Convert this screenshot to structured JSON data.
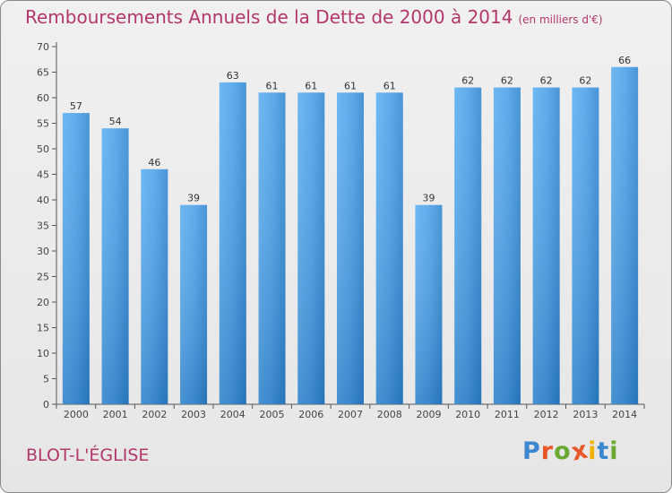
{
  "chart_data": {
    "type": "bar",
    "title": "Remboursements Annuels de la Dette de 2000 à 2014",
    "unit_note": "(en milliers d'€)",
    "categories": [
      "2000",
      "2001",
      "2002",
      "2003",
      "2004",
      "2005",
      "2006",
      "2007",
      "2008",
      "2009",
      "2010",
      "2011",
      "2012",
      "2013",
      "2014"
    ],
    "values": [
      57,
      54,
      46,
      39,
      63,
      61,
      61,
      61,
      61,
      39,
      62,
      62,
      62,
      62,
      66
    ],
    "xlabel": "",
    "ylabel": "",
    "ylim": [
      0,
      70
    ],
    "yticks": [
      0,
      5,
      10,
      15,
      20,
      25,
      30,
      35,
      40,
      45,
      50,
      55,
      60,
      65,
      70
    ],
    "grid": false,
    "bar_color": "#3a8fd6"
  },
  "commune": "BLOT-L'ÉGLISE",
  "logo": {
    "text": "Proxiti",
    "letter_colors": [
      "#3d86d0",
      "#e8572a",
      "#6aa832",
      "#e8572a",
      "#f0b400",
      "#3d86d0",
      "#6aa832"
    ]
  },
  "colors": {
    "title": "#b2386b",
    "axis": "#555555"
  }
}
